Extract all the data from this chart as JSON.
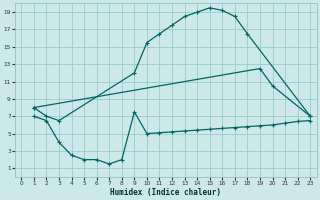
{
  "xlabel": "Humidex (Indice chaleur)",
  "bg_color": "#cce8e8",
  "grid_color": "#99cccc",
  "line_color": "#006666",
  "xlim": [
    -0.5,
    23.5
  ],
  "ylim": [
    0,
    20
  ],
  "xticks": [
    0,
    1,
    2,
    3,
    4,
    5,
    6,
    7,
    8,
    9,
    10,
    11,
    12,
    13,
    14,
    15,
    16,
    17,
    18,
    19,
    20,
    21,
    22,
    23
  ],
  "yticks": [
    1,
    3,
    5,
    7,
    9,
    11,
    13,
    15,
    17,
    19
  ],
  "curve1_x": [
    1,
    2,
    3,
    9,
    10,
    11,
    12,
    13,
    14,
    15,
    16,
    17,
    18,
    23
  ],
  "curve1_y": [
    8,
    7,
    6.5,
    12,
    15.5,
    16.5,
    17.5,
    18.5,
    19.0,
    19.5,
    19.2,
    18.5,
    16.5,
    7
  ],
  "curve2_x": [
    1,
    19,
    20,
    23
  ],
  "curve2_y": [
    8,
    12.5,
    10.5,
    7
  ],
  "curve3_x": [
    1,
    2,
    3,
    4,
    5,
    6,
    7,
    8,
    9,
    10,
    11,
    12,
    13,
    14,
    15,
    16,
    17,
    18,
    19,
    20,
    21,
    22,
    23
  ],
  "curve3_y": [
    7,
    6.5,
    4.0,
    2.5,
    2.0,
    2.0,
    1.5,
    2.0,
    7.5,
    5.0,
    5.1,
    5.2,
    5.3,
    5.4,
    5.5,
    5.6,
    5.7,
    5.8,
    5.9,
    6.0,
    6.2,
    6.4,
    6.5
  ]
}
